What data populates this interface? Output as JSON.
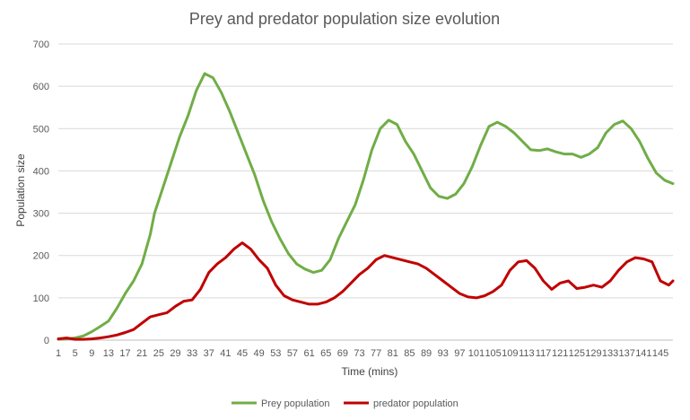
{
  "chart_data": {
    "type": "line",
    "title": "Prey and predator population size evolution",
    "xlabel": "Time (mins)",
    "ylabel": "Population size",
    "x_tick_labels": [
      "1",
      "5",
      "9",
      "13",
      "17",
      "21",
      "25",
      "29",
      "33",
      "37",
      "41",
      "45",
      "49",
      "53",
      "57",
      "61",
      "65",
      "69",
      "73",
      "77",
      "81",
      "85",
      "89",
      "93",
      "97",
      "101",
      "105",
      "109",
      "113",
      "117",
      "121",
      "125",
      "129",
      "133",
      "137",
      "141",
      "145"
    ],
    "xlim": [
      1,
      148
    ],
    "ylim": [
      0,
      700
    ],
    "y_ticks": [
      0,
      100,
      200,
      300,
      400,
      500,
      600,
      700
    ],
    "grid": "horizontal",
    "legend_position": "bottom",
    "series": [
      {
        "name": "Prey population",
        "color": "#70ad47",
        "points": [
          [
            1,
            2
          ],
          [
            3,
            3
          ],
          [
            5,
            5
          ],
          [
            7,
            10
          ],
          [
            9,
            20
          ],
          [
            11,
            32
          ],
          [
            13,
            45
          ],
          [
            15,
            75
          ],
          [
            17,
            110
          ],
          [
            19,
            140
          ],
          [
            21,
            180
          ],
          [
            23,
            250
          ],
          [
            24,
            300
          ],
          [
            26,
            360
          ],
          [
            28,
            420
          ],
          [
            30,
            480
          ],
          [
            32,
            530
          ],
          [
            34,
            590
          ],
          [
            36,
            630
          ],
          [
            38,
            620
          ],
          [
            40,
            585
          ],
          [
            42,
            540
          ],
          [
            44,
            490
          ],
          [
            46,
            440
          ],
          [
            48,
            390
          ],
          [
            50,
            330
          ],
          [
            52,
            280
          ],
          [
            54,
            240
          ],
          [
            56,
            205
          ],
          [
            58,
            180
          ],
          [
            60,
            168
          ],
          [
            62,
            160
          ],
          [
            64,
            165
          ],
          [
            66,
            190
          ],
          [
            68,
            240
          ],
          [
            70,
            280
          ],
          [
            72,
            320
          ],
          [
            74,
            380
          ],
          [
            76,
            450
          ],
          [
            78,
            500
          ],
          [
            80,
            520
          ],
          [
            82,
            510
          ],
          [
            84,
            470
          ],
          [
            86,
            440
          ],
          [
            88,
            400
          ],
          [
            90,
            360
          ],
          [
            92,
            340
          ],
          [
            94,
            335
          ],
          [
            96,
            345
          ],
          [
            98,
            370
          ],
          [
            100,
            410
          ],
          [
            102,
            460
          ],
          [
            104,
            505
          ],
          [
            106,
            515
          ],
          [
            108,
            505
          ],
          [
            110,
            490
          ],
          [
            112,
            470
          ],
          [
            114,
            450
          ],
          [
            116,
            448
          ],
          [
            118,
            452
          ],
          [
            120,
            445
          ],
          [
            122,
            440
          ],
          [
            124,
            440
          ],
          [
            126,
            432
          ],
          [
            128,
            440
          ],
          [
            130,
            455
          ],
          [
            132,
            490
          ],
          [
            134,
            510
          ],
          [
            136,
            518
          ],
          [
            138,
            500
          ],
          [
            140,
            470
          ],
          [
            142,
            430
          ],
          [
            144,
            395
          ],
          [
            146,
            378
          ],
          [
            148,
            370
          ]
        ]
      },
      {
        "name": "predator population",
        "color": "#c00000",
        "points": [
          [
            1,
            3
          ],
          [
            3,
            5
          ],
          [
            5,
            2
          ],
          [
            7,
            2
          ],
          [
            9,
            3
          ],
          [
            11,
            5
          ],
          [
            13,
            8
          ],
          [
            15,
            12
          ],
          [
            17,
            18
          ],
          [
            19,
            25
          ],
          [
            21,
            40
          ],
          [
            23,
            55
          ],
          [
            25,
            60
          ],
          [
            27,
            65
          ],
          [
            29,
            80
          ],
          [
            31,
            92
          ],
          [
            33,
            95
          ],
          [
            35,
            120
          ],
          [
            37,
            160
          ],
          [
            39,
            180
          ],
          [
            41,
            195
          ],
          [
            43,
            215
          ],
          [
            45,
            230
          ],
          [
            47,
            215
          ],
          [
            49,
            190
          ],
          [
            51,
            170
          ],
          [
            53,
            130
          ],
          [
            55,
            105
          ],
          [
            57,
            95
          ],
          [
            59,
            90
          ],
          [
            61,
            85
          ],
          [
            63,
            85
          ],
          [
            65,
            90
          ],
          [
            67,
            100
          ],
          [
            69,
            115
          ],
          [
            71,
            135
          ],
          [
            73,
            155
          ],
          [
            75,
            170
          ],
          [
            77,
            190
          ],
          [
            79,
            200
          ],
          [
            81,
            195
          ],
          [
            83,
            190
          ],
          [
            85,
            185
          ],
          [
            87,
            180
          ],
          [
            89,
            170
          ],
          [
            91,
            155
          ],
          [
            93,
            140
          ],
          [
            95,
            125
          ],
          [
            97,
            110
          ],
          [
            99,
            102
          ],
          [
            101,
            100
          ],
          [
            103,
            105
          ],
          [
            105,
            115
          ],
          [
            107,
            130
          ],
          [
            109,
            165
          ],
          [
            111,
            185
          ],
          [
            113,
            188
          ],
          [
            115,
            170
          ],
          [
            117,
            140
          ],
          [
            119,
            120
          ],
          [
            121,
            135
          ],
          [
            123,
            140
          ],
          [
            125,
            122
          ],
          [
            127,
            125
          ],
          [
            129,
            130
          ],
          [
            131,
            125
          ],
          [
            133,
            140
          ],
          [
            135,
            165
          ],
          [
            137,
            185
          ],
          [
            139,
            195
          ],
          [
            141,
            192
          ],
          [
            143,
            185
          ],
          [
            145,
            140
          ],
          [
            147,
            130
          ],
          [
            148,
            140
          ]
        ]
      }
    ]
  }
}
